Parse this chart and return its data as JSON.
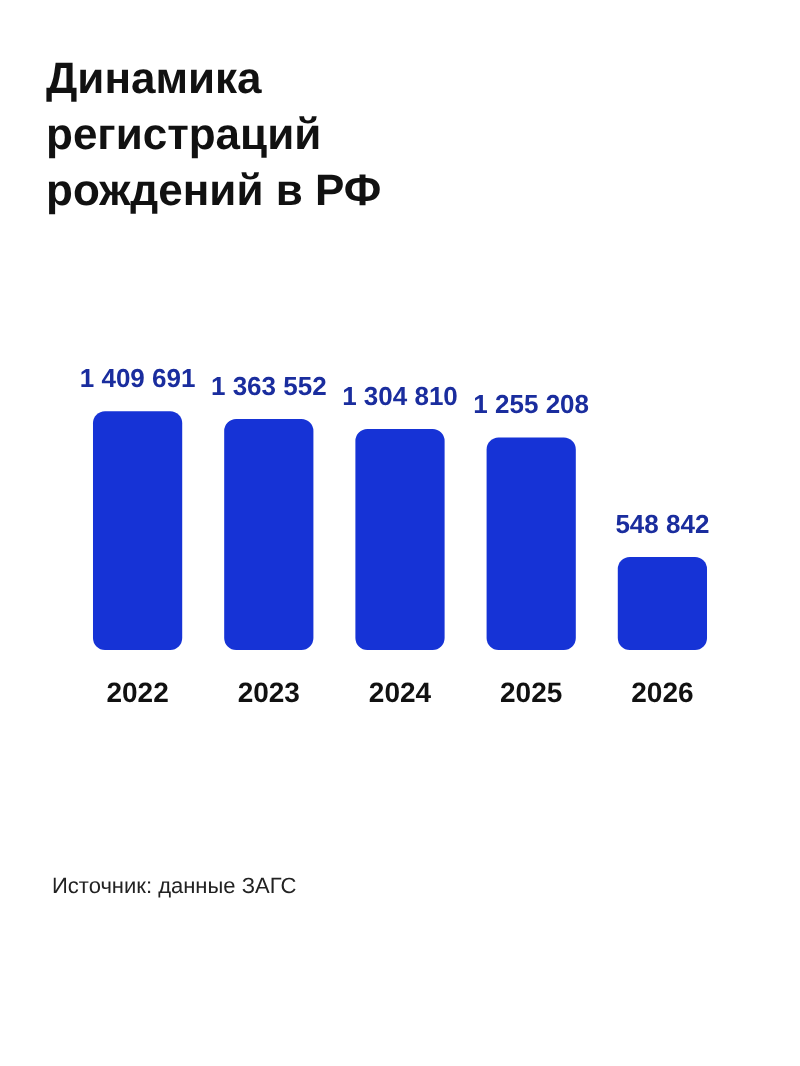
{
  "chart_data": {
    "type": "bar",
    "title": "Динамика регистраций рождений в РФ",
    "categories": [
      "2022",
      "2023",
      "2024",
      "2025",
      "2026"
    ],
    "values": [
      1409691,
      1363552,
      1304810,
      1255208,
      548842
    ],
    "color": "#1633d6",
    "data_labels": true,
    "annotations": [
      "Источник: данные ЗАГС"
    ]
  }
}
